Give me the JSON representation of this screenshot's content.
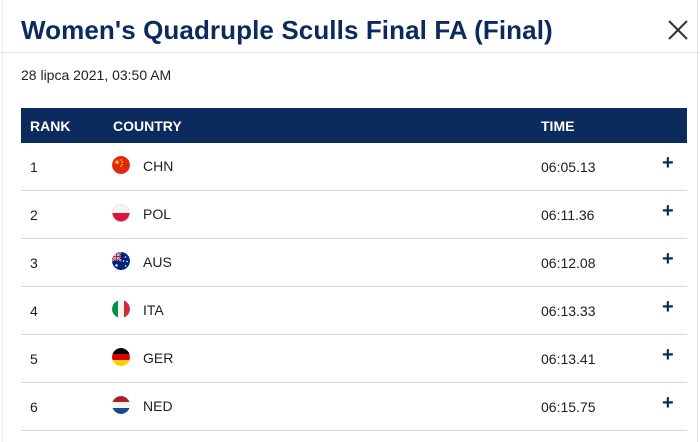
{
  "header": {
    "title": "Women's Quadruple Sculls Final FA (Final)",
    "date": "28 lipca 2021, 03:50 AM"
  },
  "table": {
    "columns": {
      "rank": "RANK",
      "country": "COUNTRY",
      "time": "TIME"
    },
    "rows": [
      {
        "rank": "1",
        "country": "CHN",
        "time": "06:05.13",
        "flag": "china-flag-icon"
      },
      {
        "rank": "2",
        "country": "POL",
        "time": "06:11.36",
        "flag": "poland-flag-icon"
      },
      {
        "rank": "3",
        "country": "AUS",
        "time": "06:12.08",
        "flag": "australia-flag-icon"
      },
      {
        "rank": "4",
        "country": "ITA",
        "time": "06:13.33",
        "flag": "italy-flag-icon"
      },
      {
        "rank": "5",
        "country": "GER",
        "time": "06:13.41",
        "flag": "germany-flag-icon"
      },
      {
        "rank": "6",
        "country": "NED",
        "time": "06:15.75",
        "flag": "netherlands-flag-icon"
      }
    ],
    "expand_symbol": "+"
  },
  "colors": {
    "brand_navy": "#0b2a5e",
    "row_divider": "#d9d9d9"
  }
}
